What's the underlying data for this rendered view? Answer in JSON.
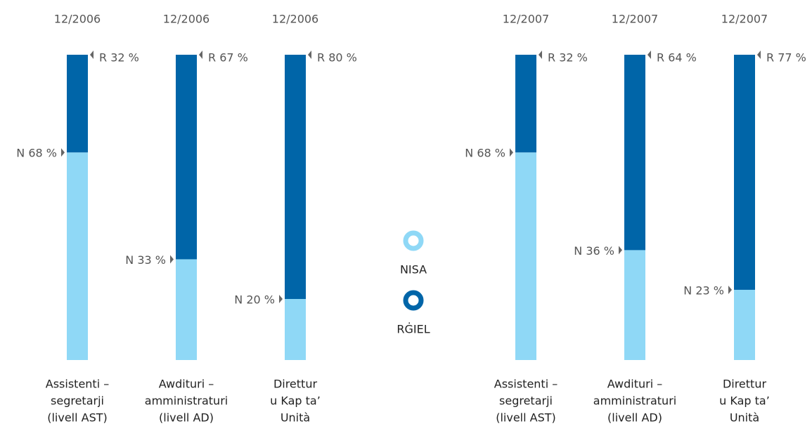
{
  "chart_data": [
    {
      "type": "bar",
      "stacked": true,
      "periods": [
        "12/2006",
        "12/2006",
        "12/2006"
      ],
      "categories": [
        [
          "Assistenti –",
          "segretarji",
          "(livell AST)"
        ],
        [
          "Awdituri –",
          "amministraturi",
          "(livell AD)"
        ],
        [
          "Direttur",
          "u Kap ta’",
          "Unità"
        ]
      ],
      "ylim": [
        0,
        100
      ],
      "series": [
        {
          "name": "NISA",
          "color": "#8fd8f6",
          "values": [
            68,
            33,
            20
          ],
          "value_labels": [
            "N 68 %",
            "N 33 %",
            "N 20 %"
          ]
        },
        {
          "name": "RĠIEL",
          "color": "#0065a8",
          "values": [
            32,
            67,
            80
          ],
          "value_labels": [
            "R 32 %",
            "R 67 %",
            "R 80 %"
          ]
        }
      ]
    },
    {
      "type": "bar",
      "stacked": true,
      "periods": [
        "12/2007",
        "12/2007",
        "12/2007"
      ],
      "categories": [
        [
          "Assistenti –",
          "segretarji",
          "(livell AST)"
        ],
        [
          "Awdituri –",
          "amministraturi",
          "(livell AD)"
        ],
        [
          "Direttur",
          "u Kap ta’",
          "Unità"
        ]
      ],
      "ylim": [
        0,
        100
      ],
      "series": [
        {
          "name": "NISA",
          "color": "#8fd8f6",
          "values": [
            68,
            36,
            23
          ],
          "value_labels": [
            "N 68 %",
            "N 36 %",
            "N 23 %"
          ]
        },
        {
          "name": "RĠIEL",
          "color": "#0065a8",
          "values": [
            32,
            64,
            77
          ],
          "value_labels": [
            "R 32 %",
            "R 64 %",
            "R 77 %"
          ]
        }
      ]
    }
  ]
}
